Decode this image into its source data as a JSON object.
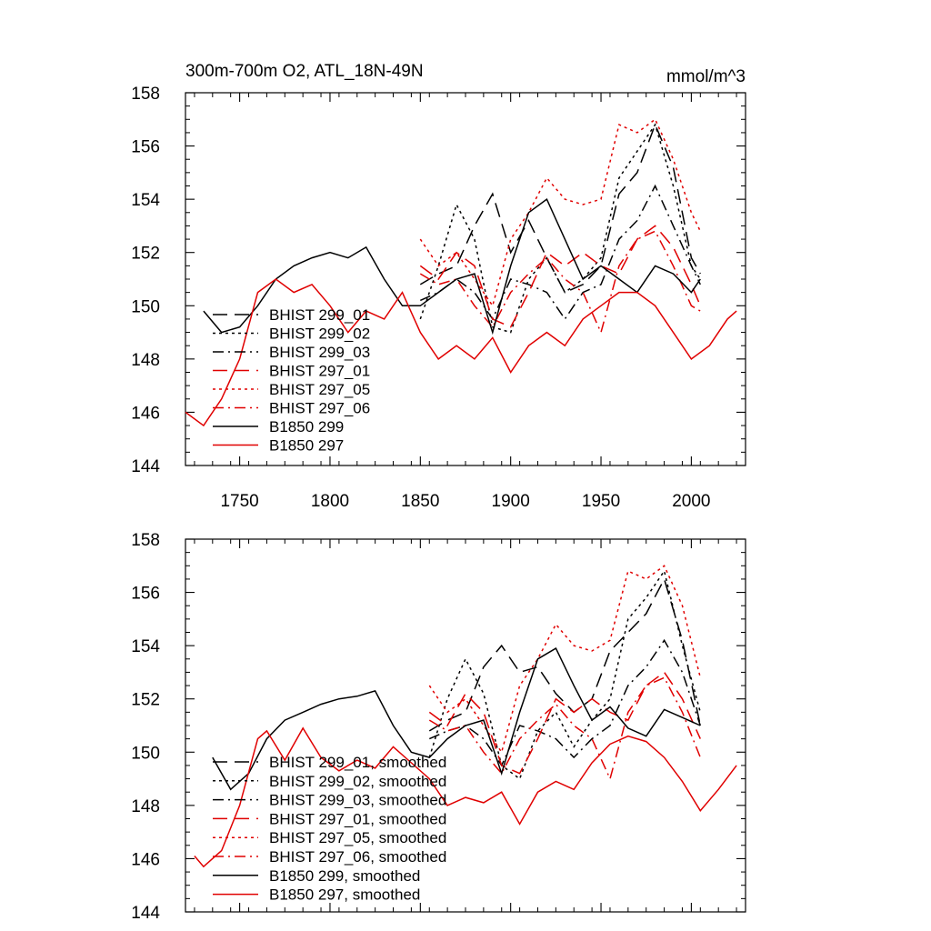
{
  "chart_data": [
    {
      "type": "line",
      "title": "300m-700m O2, ATL_18N-49N",
      "units": "mmol/m^3",
      "xlabel": "",
      "ylabel": "",
      "xlim": [
        1720,
        2030
      ],
      "ylim": [
        144,
        158
      ],
      "x_ticks": [
        1750,
        1800,
        1850,
        1900,
        1950,
        2000
      ],
      "x_tick_labels": [
        "1750",
        "1800",
        "1850",
        "1900",
        "1950",
        "2000"
      ],
      "y_ticks": [
        144,
        146,
        148,
        150,
        152,
        154,
        156,
        158
      ],
      "y_tick_labels": [
        "144",
        "146",
        "148",
        "150",
        "152",
        "154",
        "156",
        "158"
      ],
      "legend_position": "lower-left",
      "series": [
        {
          "name": "BHIST 299_01",
          "color": "#000000",
          "dash": "longdash",
          "x": [
            1850,
            1860,
            1870,
            1880,
            1890,
            1900,
            1910,
            1920,
            1930,
            1940,
            1950,
            1960,
            1970,
            1980,
            1990,
            2000,
            2005
          ],
          "values": [
            150.8,
            151.2,
            151.5,
            153.0,
            154.2,
            152.0,
            153.2,
            151.8,
            150.5,
            150.8,
            151.5,
            154.2,
            155.0,
            156.8,
            155.2,
            151.8,
            151.2
          ]
        },
        {
          "name": "BHIST 299_02",
          "color": "#000000",
          "dash": "dotted",
          "x": [
            1850,
            1860,
            1870,
            1880,
            1890,
            1900,
            1910,
            1920,
            1930,
            1940,
            1950,
            1960,
            1970,
            1980,
            1990,
            2000,
            2005
          ],
          "values": [
            149.5,
            151.5,
            153.8,
            152.5,
            149.2,
            149.0,
            151.0,
            151.8,
            150.5,
            151.0,
            151.8,
            154.8,
            155.8,
            156.8,
            154.5,
            151.5,
            151.0
          ]
        },
        {
          "name": "BHIST 299_03",
          "color": "#000000",
          "dash": "dashdot",
          "x": [
            1850,
            1860,
            1870,
            1880,
            1890,
            1900,
            1910,
            1920,
            1930,
            1940,
            1950,
            1960,
            1970,
            1980,
            1990,
            2000,
            2005
          ],
          "values": [
            150.2,
            150.5,
            151.0,
            150.5,
            149.5,
            151.0,
            150.8,
            150.5,
            149.5,
            150.5,
            150.8,
            152.5,
            153.2,
            154.5,
            153.0,
            151.5,
            150.8
          ]
        },
        {
          "name": "BHIST 297_01",
          "color": "#e00000",
          "dash": "longdash",
          "x": [
            1850,
            1860,
            1870,
            1880,
            1890,
            1900,
            1910,
            1920,
            1930,
            1940,
            1950,
            1960,
            1970,
            1980,
            1990,
            2000,
            2005
          ],
          "values": [
            151.5,
            151.0,
            152.0,
            151.5,
            149.5,
            149.2,
            150.5,
            152.0,
            151.5,
            152.0,
            151.5,
            151.2,
            152.5,
            153.0,
            152.2,
            150.8,
            150.0
          ]
        },
        {
          "name": "BHIST 297_05",
          "color": "#e00000",
          "dash": "dotted",
          "x": [
            1850,
            1860,
            1870,
            1880,
            1890,
            1900,
            1910,
            1920,
            1930,
            1940,
            1950,
            1960,
            1970,
            1980,
            1990,
            2000,
            2005
          ],
          "values": [
            152.5,
            151.5,
            152.0,
            151.0,
            150.0,
            152.5,
            153.5,
            154.8,
            154.0,
            153.8,
            154.0,
            156.8,
            156.5,
            157.0,
            155.5,
            153.5,
            152.8
          ]
        },
        {
          "name": "BHIST 297_06",
          "color": "#e00000",
          "dash": "dashdot",
          "x": [
            1850,
            1860,
            1870,
            1880,
            1890,
            1900,
            1910,
            1920,
            1930,
            1940,
            1950,
            1960,
            1970,
            1980,
            1990,
            2000,
            2005
          ],
          "values": [
            151.2,
            150.8,
            151.0,
            150.0,
            149.2,
            150.5,
            151.2,
            151.8,
            151.0,
            150.5,
            149.0,
            151.5,
            152.5,
            152.8,
            151.5,
            150.0,
            149.8
          ]
        },
        {
          "name": "B1850 299",
          "color": "#000000",
          "dash": "solid",
          "x": [
            1730,
            1740,
            1750,
            1760,
            1770,
            1780,
            1790,
            1800,
            1810,
            1820,
            1830,
            1840,
            1850,
            1860,
            1870,
            1880,
            1890,
            1900,
            1910,
            1920,
            1930,
            1940,
            1950,
            1960,
            1970,
            1980,
            1990,
            2000,
            2005
          ],
          "values": [
            149.8,
            149.0,
            149.2,
            150.0,
            151.0,
            151.5,
            151.8,
            152.0,
            151.8,
            152.2,
            151.0,
            150.0,
            150.0,
            150.5,
            151.0,
            151.2,
            149.0,
            151.5,
            153.5,
            154.0,
            152.5,
            151.0,
            151.5,
            151.0,
            150.5,
            151.5,
            151.2,
            150.5,
            151.0
          ]
        },
        {
          "name": "B1850 297",
          "color": "#e00000",
          "dash": "solid",
          "x": [
            1720,
            1730,
            1740,
            1750,
            1760,
            1770,
            1780,
            1790,
            1800,
            1810,
            1820,
            1830,
            1840,
            1850,
            1860,
            1870,
            1880,
            1890,
            1900,
            1910,
            1920,
            1930,
            1940,
            1950,
            1960,
            1970,
            1980,
            1990,
            2000,
            2010,
            2020,
            2025
          ],
          "values": [
            146.0,
            145.5,
            146.5,
            148.0,
            150.5,
            151.0,
            150.5,
            150.8,
            150.0,
            149.0,
            149.8,
            149.5,
            150.5,
            149.0,
            148.0,
            148.5,
            148.0,
            148.8,
            147.5,
            148.5,
            149.0,
            148.5,
            149.5,
            150.0,
            150.5,
            150.5,
            150.0,
            149.0,
            148.0,
            148.5,
            149.5,
            149.8
          ]
        }
      ]
    },
    {
      "type": "line",
      "title": "",
      "xlabel": "",
      "ylabel": "",
      "xlim": [
        1720,
        2030
      ],
      "ylim": [
        144,
        158
      ],
      "x_ticks": [
        1750,
        1800,
        1850,
        1900,
        1950,
        2000
      ],
      "y_ticks": [
        144,
        146,
        148,
        150,
        152,
        154,
        156,
        158
      ],
      "y_tick_labels": [
        "144",
        "146",
        "148",
        "150",
        "152",
        "154",
        "156",
        "158"
      ],
      "legend_position": "lower-left",
      "series": [
        {
          "name": "BHIST 299_01, smoothed",
          "color": "#000000",
          "dash": "longdash",
          "x": [
            1855,
            1865,
            1875,
            1885,
            1895,
            1905,
            1915,
            1925,
            1935,
            1945,
            1955,
            1965,
            1975,
            1985,
            1995,
            2005
          ],
          "values": [
            150.8,
            151.2,
            151.5,
            153.2,
            154.0,
            153.0,
            153.2,
            152.2,
            151.5,
            152.0,
            153.8,
            154.5,
            155.2,
            156.5,
            154.2,
            151.0
          ]
        },
        {
          "name": "BHIST 299_02, smoothed",
          "color": "#000000",
          "dash": "dotted",
          "x": [
            1855,
            1865,
            1875,
            1885,
            1895,
            1905,
            1915,
            1925,
            1935,
            1945,
            1955,
            1965,
            1975,
            1985,
            1995,
            2005
          ],
          "values": [
            149.8,
            152.0,
            153.5,
            152.2,
            149.5,
            149.0,
            150.8,
            151.5,
            150.2,
            151.2,
            152.0,
            155.0,
            155.8,
            156.8,
            154.0,
            151.5
          ]
        },
        {
          "name": "BHIST 299_03, smoothed",
          "color": "#000000",
          "dash": "dashdot",
          "x": [
            1855,
            1865,
            1875,
            1885,
            1895,
            1905,
            1915,
            1925,
            1935,
            1945,
            1955,
            1965,
            1975,
            1985,
            1995,
            2005
          ],
          "values": [
            150.5,
            150.8,
            151.0,
            150.5,
            149.5,
            151.0,
            150.8,
            150.5,
            149.8,
            150.5,
            151.0,
            152.5,
            153.2,
            154.2,
            153.0,
            151.0
          ]
        },
        {
          "name": "BHIST 297_01, smoothed",
          "color": "#e00000",
          "dash": "longdash",
          "x": [
            1855,
            1865,
            1875,
            1885,
            1895,
            1905,
            1915,
            1925,
            1935,
            1945,
            1955,
            1965,
            1975,
            1985,
            1995,
            2005
          ],
          "values": [
            151.5,
            151.0,
            152.2,
            151.5,
            149.5,
            149.2,
            150.5,
            152.0,
            151.5,
            152.0,
            151.5,
            151.2,
            152.5,
            153.0,
            152.0,
            150.5
          ]
        },
        {
          "name": "BHIST 297_05, smoothed",
          "color": "#e00000",
          "dash": "dotted",
          "x": [
            1855,
            1865,
            1875,
            1885,
            1895,
            1905,
            1915,
            1925,
            1935,
            1945,
            1955,
            1965,
            1975,
            1985,
            1995,
            2005
          ],
          "values": [
            152.5,
            151.5,
            152.0,
            151.0,
            150.0,
            152.5,
            153.5,
            154.8,
            154.0,
            153.8,
            154.2,
            156.8,
            156.5,
            157.0,
            155.5,
            152.8
          ]
        },
        {
          "name": "BHIST 297_06, smoothed",
          "color": "#e00000",
          "dash": "dashdot",
          "x": [
            1855,
            1865,
            1875,
            1885,
            1895,
            1905,
            1915,
            1925,
            1935,
            1945,
            1955,
            1965,
            1975,
            1985,
            1995,
            2005
          ],
          "values": [
            151.2,
            150.8,
            151.0,
            150.0,
            149.2,
            150.5,
            151.2,
            151.8,
            151.0,
            150.5,
            149.0,
            151.5,
            152.5,
            152.8,
            151.5,
            149.8
          ]
        },
        {
          "name": "B1850 299, smoothed",
          "color": "#000000",
          "dash": "solid",
          "x": [
            1735,
            1745,
            1755,
            1765,
            1775,
            1785,
            1795,
            1805,
            1815,
            1825,
            1835,
            1845,
            1855,
            1865,
            1875,
            1885,
            1895,
            1905,
            1915,
            1925,
            1935,
            1945,
            1955,
            1965,
            1975,
            1985,
            1995,
            2005
          ],
          "values": [
            149.8,
            148.6,
            149.2,
            150.5,
            151.2,
            151.5,
            151.8,
            152.0,
            152.1,
            152.3,
            151.0,
            150.0,
            149.8,
            150.5,
            151.0,
            151.2,
            149.2,
            151.5,
            153.5,
            153.9,
            152.5,
            151.2,
            151.7,
            150.9,
            150.6,
            151.6,
            151.3,
            151.0
          ]
        },
        {
          "name": "B1850 297, smoothed",
          "color": "#e00000",
          "dash": "solid",
          "x": [
            1725,
            1730,
            1740,
            1750,
            1760,
            1765,
            1775,
            1785,
            1795,
            1805,
            1815,
            1825,
            1835,
            1845,
            1855,
            1865,
            1875,
            1885,
            1895,
            1905,
            1915,
            1925,
            1935,
            1945,
            1955,
            1965,
            1975,
            1985,
            1995,
            2005,
            2015,
            2025
          ],
          "values": [
            146.1,
            145.7,
            146.3,
            148.0,
            150.5,
            150.8,
            149.7,
            150.9,
            149.8,
            149.3,
            149.7,
            149.4,
            150.2,
            149.6,
            149.0,
            148.0,
            148.3,
            148.1,
            148.5,
            147.3,
            148.5,
            148.9,
            148.6,
            149.6,
            150.3,
            150.6,
            150.4,
            149.8,
            148.9,
            147.8,
            148.6,
            149.5
          ]
        }
      ]
    }
  ]
}
